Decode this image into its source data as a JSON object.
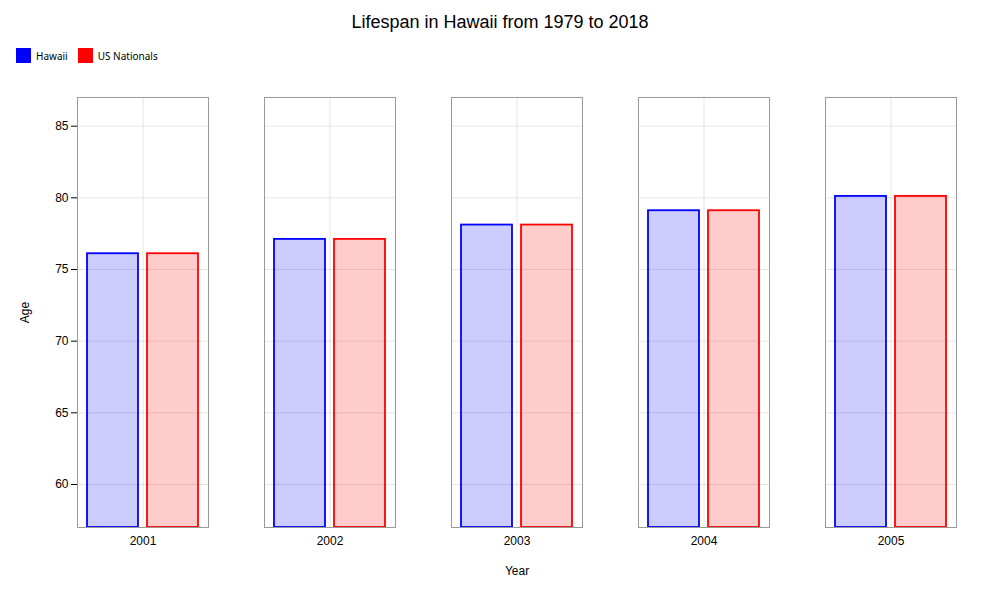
{
  "chart_data": {
    "type": "bar",
    "title": "Lifespan in Hawaii from 1979 to 2018",
    "x_label": "Year",
    "y_label": "Age",
    "categories": [
      "2001",
      "2002",
      "2003",
      "2004",
      "2005"
    ],
    "series": [
      {
        "name": "Hawaii",
        "color": "#0000ff",
        "values": [
          76.1,
          77.1,
          78.1,
          79.1,
          80.1
        ]
      },
      {
        "name": "US Nationals",
        "color": "#ff0000",
        "values": [
          76.1,
          77.1,
          78.1,
          79.1,
          80.1
        ]
      }
    ],
    "ylim": [
      57,
      87
    ],
    "yticks": [
      60,
      65,
      70,
      75,
      80,
      85
    ],
    "grid": true,
    "legend": "top"
  }
}
